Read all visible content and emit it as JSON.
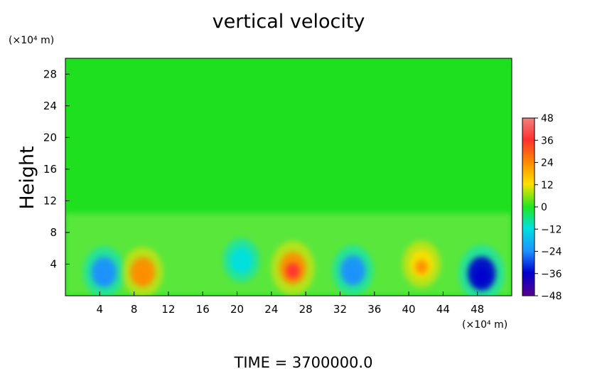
{
  "chart_data": {
    "type": "heatmap",
    "title": "vertical velocity",
    "ylabel": "Height",
    "y_unit": "(×10⁴ m)",
    "x_unit": "(×10⁴ m)",
    "xlim": [
      0,
      52
    ],
    "ylim": [
      0,
      30
    ],
    "x_ticks": [
      4,
      8,
      12,
      16,
      20,
      24,
      28,
      32,
      36,
      40,
      44,
      48
    ],
    "y_ticks": [
      4,
      8,
      12,
      16,
      20,
      24,
      28
    ],
    "colorbar": {
      "min": -48,
      "max": 48,
      "ticks": [
        48,
        36,
        24,
        12,
        0,
        -12,
        -24,
        -36,
        -48
      ],
      "tick_labels": [
        "48",
        "36",
        "24",
        "12",
        "0",
        "−12",
        "−24",
        "−36",
        "−48"
      ]
    },
    "background_value": 0,
    "features": [
      {
        "x": 4.5,
        "y": 3.0,
        "value": -28
      },
      {
        "x": 9.0,
        "y": 3.0,
        "value": 26
      },
      {
        "x": 20.5,
        "y": 4.5,
        "value": -14
      },
      {
        "x": 26.5,
        "y": 3.5,
        "value": 34
      },
      {
        "x": 33.5,
        "y": 3.2,
        "value": -26
      },
      {
        "x": 41.5,
        "y": 4.0,
        "value": 20
      },
      {
        "x": 48.5,
        "y": 2.8,
        "value": -40
      }
    ]
  },
  "footer": {
    "time_label": "TIME  =  3700000.0"
  }
}
